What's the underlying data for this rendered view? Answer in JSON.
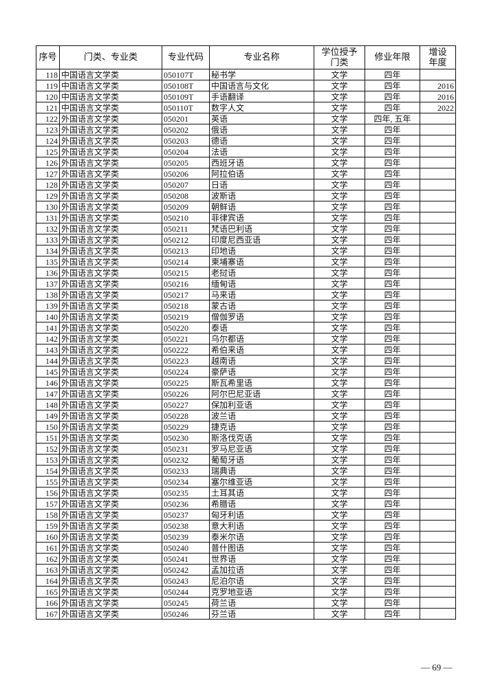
{
  "headers": [
    "序号",
    "门类、专业类",
    "专业代码",
    "专业名称",
    "学位授予门类",
    "修业年限",
    "增设年度"
  ],
  "rows": [
    [
      "118",
      "中国语言文学类",
      "050107T",
      "秘书学",
      "文学",
      "四年",
      ""
    ],
    [
      "119",
      "中国语言文学类",
      "050108T",
      "中国语言与文化",
      "文学",
      "四年",
      "2016"
    ],
    [
      "120",
      "中国语言文学类",
      "050109T",
      "手语翻译",
      "文学",
      "四年",
      "2016"
    ],
    [
      "121",
      "中国语言文学类",
      "050110T",
      "数字人文",
      "文学",
      "四年",
      "2022"
    ],
    [
      "122",
      "外国语言文学类",
      "050201",
      "英语",
      "文学",
      "四年, 五年",
      ""
    ],
    [
      "123",
      "外国语言文学类",
      "050202",
      "俄语",
      "文学",
      "四年",
      ""
    ],
    [
      "124",
      "外国语言文学类",
      "050203",
      "德语",
      "文学",
      "四年",
      ""
    ],
    [
      "125",
      "外国语言文学类",
      "050204",
      "法语",
      "文学",
      "四年",
      ""
    ],
    [
      "126",
      "外国语言文学类",
      "050205",
      "西班牙语",
      "文学",
      "四年",
      ""
    ],
    [
      "127",
      "外国语言文学类",
      "050206",
      "阿拉伯语",
      "文学",
      "四年",
      ""
    ],
    [
      "128",
      "外国语言文学类",
      "050207",
      "日语",
      "文学",
      "四年",
      ""
    ],
    [
      "129",
      "外国语言文学类",
      "050208",
      "波斯语",
      "文学",
      "四年",
      ""
    ],
    [
      "130",
      "外国语言文学类",
      "050209",
      "朝鲜语",
      "文学",
      "四年",
      ""
    ],
    [
      "131",
      "外国语言文学类",
      "050210",
      "菲律宾语",
      "文学",
      "四年",
      ""
    ],
    [
      "132",
      "外国语言文学类",
      "050211",
      "梵语巴利语",
      "文学",
      "四年",
      ""
    ],
    [
      "133",
      "外国语言文学类",
      "050212",
      "印度尼西亚语",
      "文学",
      "四年",
      ""
    ],
    [
      "134",
      "外国语言文学类",
      "050213",
      "印地语",
      "文学",
      "四年",
      ""
    ],
    [
      "135",
      "外国语言文学类",
      "050214",
      "柬埔寨语",
      "文学",
      "四年",
      ""
    ],
    [
      "136",
      "外国语言文学类",
      "050215",
      "老挝语",
      "文学",
      "四年",
      ""
    ],
    [
      "137",
      "外国语言文学类",
      "050216",
      "缅甸语",
      "文学",
      "四年",
      ""
    ],
    [
      "138",
      "外国语言文学类",
      "050217",
      "马来语",
      "文学",
      "四年",
      ""
    ],
    [
      "139",
      "外国语言文学类",
      "050218",
      "蒙古语",
      "文学",
      "四年",
      ""
    ],
    [
      "140",
      "外国语言文学类",
      "050219",
      "僧伽罗语",
      "文学",
      "四年",
      ""
    ],
    [
      "141",
      "外国语言文学类",
      "050220",
      "泰语",
      "文学",
      "四年",
      ""
    ],
    [
      "142",
      "外国语言文学类",
      "050221",
      "乌尔都语",
      "文学",
      "四年",
      ""
    ],
    [
      "143",
      "外国语言文学类",
      "050222",
      "希伯来语",
      "文学",
      "四年",
      ""
    ],
    [
      "144",
      "外国语言文学类",
      "050223",
      "越南语",
      "文学",
      "四年",
      ""
    ],
    [
      "145",
      "外国语言文学类",
      "050224",
      "豪萨语",
      "文学",
      "四年",
      ""
    ],
    [
      "146",
      "外国语言文学类",
      "050225",
      "斯瓦希里语",
      "文学",
      "四年",
      ""
    ],
    [
      "147",
      "外国语言文学类",
      "050226",
      "阿尔巴尼亚语",
      "文学",
      "四年",
      ""
    ],
    [
      "148",
      "外国语言文学类",
      "050227",
      "保加利亚语",
      "文学",
      "四年",
      ""
    ],
    [
      "149",
      "外国语言文学类",
      "050228",
      "波兰语",
      "文学",
      "四年",
      ""
    ],
    [
      "150",
      "外国语言文学类",
      "050229",
      "捷克语",
      "文学",
      "四年",
      ""
    ],
    [
      "151",
      "外国语言文学类",
      "050230",
      "斯洛伐克语",
      "文学",
      "四年",
      ""
    ],
    [
      "152",
      "外国语言文学类",
      "050231",
      "罗马尼亚语",
      "文学",
      "四年",
      ""
    ],
    [
      "153",
      "外国语言文学类",
      "050232",
      "葡萄牙语",
      "文学",
      "四年",
      ""
    ],
    [
      "154",
      "外国语言文学类",
      "050233",
      "瑞典语",
      "文学",
      "四年",
      ""
    ],
    [
      "155",
      "外国语言文学类",
      "050234",
      "塞尔维亚语",
      "文学",
      "四年",
      ""
    ],
    [
      "156",
      "外国语言文学类",
      "050235",
      "土耳其语",
      "文学",
      "四年",
      ""
    ],
    [
      "157",
      "外国语言文学类",
      "050236",
      "希腊语",
      "文学",
      "四年",
      ""
    ],
    [
      "158",
      "外国语言文学类",
      "050237",
      "匈牙利语",
      "文学",
      "四年",
      ""
    ],
    [
      "159",
      "外国语言文学类",
      "050238",
      "意大利语",
      "文学",
      "四年",
      ""
    ],
    [
      "160",
      "外国语言文学类",
      "050239",
      "泰米尔语",
      "文学",
      "四年",
      ""
    ],
    [
      "161",
      "外国语言文学类",
      "050240",
      "普什图语",
      "文学",
      "四年",
      ""
    ],
    [
      "162",
      "外国语言文学类",
      "050241",
      "世界语",
      "文学",
      "四年",
      ""
    ],
    [
      "163",
      "外国语言文学类",
      "050242",
      "孟加拉语",
      "文学",
      "四年",
      ""
    ],
    [
      "164",
      "外国语言文学类",
      "050243",
      "尼泊尔语",
      "文学",
      "四年",
      ""
    ],
    [
      "165",
      "外国语言文学类",
      "050244",
      "克罗地亚语",
      "文学",
      "四年",
      ""
    ],
    [
      "166",
      "外国语言文学类",
      "050245",
      "荷兰语",
      "文学",
      "四年",
      ""
    ],
    [
      "167",
      "外国语言文学类",
      "050246",
      "芬兰语",
      "文学",
      "四年",
      ""
    ]
  ],
  "footer": {
    "page": "— 69 —"
  }
}
